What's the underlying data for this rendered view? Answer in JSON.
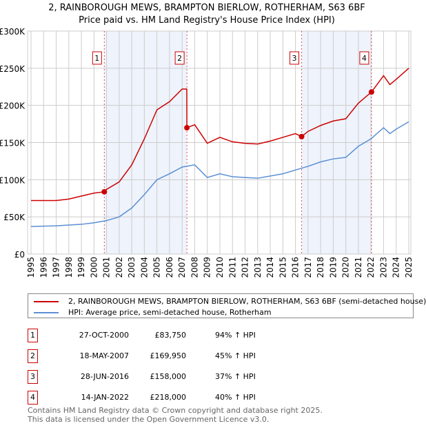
{
  "chart_data": {
    "type": "line",
    "title": "2, RAINBOROUGH MEWS, BRAMPTON BIERLOW, ROTHERHAM, S63 6BF",
    "subtitle": "Price paid vs. HM Land Registry's House Price Index (HPI)",
    "xlim": [
      1995,
      2025
    ],
    "ylim": [
      0,
      300000
    ],
    "yticks": [
      {
        "v": 0,
        "label": "£0"
      },
      {
        "v": 50000,
        "label": "£50K"
      },
      {
        "v": 100000,
        "label": "£100K"
      },
      {
        "v": 150000,
        "label": "£150K"
      },
      {
        "v": 200000,
        "label": "£200K"
      },
      {
        "v": 250000,
        "label": "£250K"
      },
      {
        "v": 300000,
        "label": "£300K"
      }
    ],
    "xticks": [
      1995,
      1996,
      1997,
      1998,
      1999,
      2000,
      2001,
      2002,
      2003,
      2004,
      2005,
      2006,
      2007,
      2008,
      2009,
      2010,
      2011,
      2012,
      2013,
      2014,
      2015,
      2016,
      2017,
      2018,
      2019,
      2020,
      2021,
      2022,
      2023,
      2024,
      2025
    ],
    "grid": true,
    "series": [
      {
        "name": "2, RAINBOROUGH MEWS, BRAMPTON BIERLOW, ROTHERHAM, S63 6BF (semi-detached house)",
        "color": "#cc0000",
        "x": [
          1995,
          1996,
          1997,
          1998,
          1999,
          2000,
          2000.82,
          2001,
          2002,
          2003,
          2004,
          2005,
          2006,
          2007,
          2007.37,
          2007.38,
          2008,
          2009,
          2010,
          2011,
          2012,
          2013,
          2014,
          2015,
          2016,
          2016.49,
          2017,
          2018,
          2019,
          2020,
          2021,
          2022.04,
          2023,
          2023.5,
          2024,
          2025
        ],
        "y": [
          72000,
          72000,
          72000,
          74000,
          78000,
          82000,
          83750,
          87000,
          97000,
          120000,
          155000,
          194000,
          205000,
          222000,
          222000,
          169950,
          174000,
          149000,
          157000,
          151000,
          149000,
          148000,
          152000,
          157000,
          162000,
          158000,
          165000,
          173000,
          179000,
          182000,
          203000,
          218000,
          240000,
          228000,
          235000,
          250000
        ]
      },
      {
        "name": "HPI: Average price, semi-detached house, Rotherham",
        "color": "#5b8fd4",
        "x": [
          1995,
          1996,
          1997,
          1998,
          1999,
          2000,
          2001,
          2002,
          2003,
          2004,
          2005,
          2006,
          2007,
          2008,
          2009,
          2010,
          2011,
          2012,
          2013,
          2014,
          2015,
          2016,
          2017,
          2018,
          2019,
          2020,
          2021,
          2022,
          2023,
          2023.5,
          2024,
          2025
        ],
        "y": [
          37000,
          37500,
          38000,
          39000,
          40000,
          42000,
          45000,
          50000,
          62000,
          80000,
          100000,
          108000,
          117000,
          120000,
          103000,
          108000,
          104000,
          103000,
          102000,
          105000,
          108000,
          113000,
          118000,
          124000,
          128000,
          130000,
          145000,
          155000,
          170000,
          162000,
          168000,
          178000
        ]
      }
    ],
    "sales": [
      {
        "n": "1",
        "x": 2000.82,
        "date": "27-OCT-2000",
        "price": "£83,750",
        "value": 83750,
        "hpi": "94% ↑ HPI"
      },
      {
        "n": "2",
        "x": 2007.38,
        "date": "18-MAY-2007",
        "price": "£169,950",
        "value": 169950,
        "hpi": "45% ↑ HPI"
      },
      {
        "n": "3",
        "x": 2016.49,
        "date": "28-JUN-2016",
        "price": "£158,000",
        "value": 158000,
        "hpi": "37% ↑ HPI"
      },
      {
        "n": "4",
        "x": 2022.04,
        "date": "14-JAN-2022",
        "price": "£218,000",
        "value": 218000,
        "hpi": "40% ↑ HPI"
      }
    ],
    "shaded": [
      [
        0,
        1
      ],
      [
        2,
        3
      ]
    ]
  },
  "footer": {
    "line1": "Contains HM Land Registry data © Crown copyright and database right 2025.",
    "line2": "This data is licensed under the Open Government Licence v3.0."
  }
}
